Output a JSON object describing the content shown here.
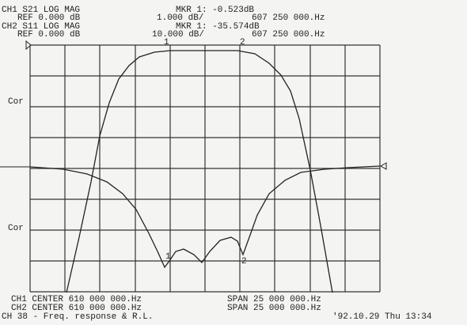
{
  "header": {
    "ch1": {
      "label": "CH1 S21 LOG MAG",
      "marker": "MKR 1: -0.523dB",
      "ref": "REF 0.000 dB",
      "scale": "1.000 dB/",
      "freq": "607 250 000.Hz"
    },
    "ch2": {
      "label": "CH2 S11 LOG MAG",
      "marker": "MKR 1: -35.574dB",
      "ref": "REF 0.000 dB",
      "scale": "10.000 dB/",
      "freq": "607 250 000.Hz"
    }
  },
  "plot": {
    "side_labels": [
      "Cor",
      "Cor"
    ],
    "markers": [
      "1",
      "2",
      "1",
      "2"
    ]
  },
  "footer": {
    "ch1_center": "CH1 CENTER 610 000 000.Hz",
    "ch1_span": "SPAN 25 000 000.Hz",
    "ch2_center": "CH2 CENTER 610 000 000.Hz",
    "ch2_span": "SPAN 25 000 000.Hz",
    "title": "CH 38 - Freq. response & R.L.",
    "timestamp": "'92.10.29 Thu 13:34"
  }
}
